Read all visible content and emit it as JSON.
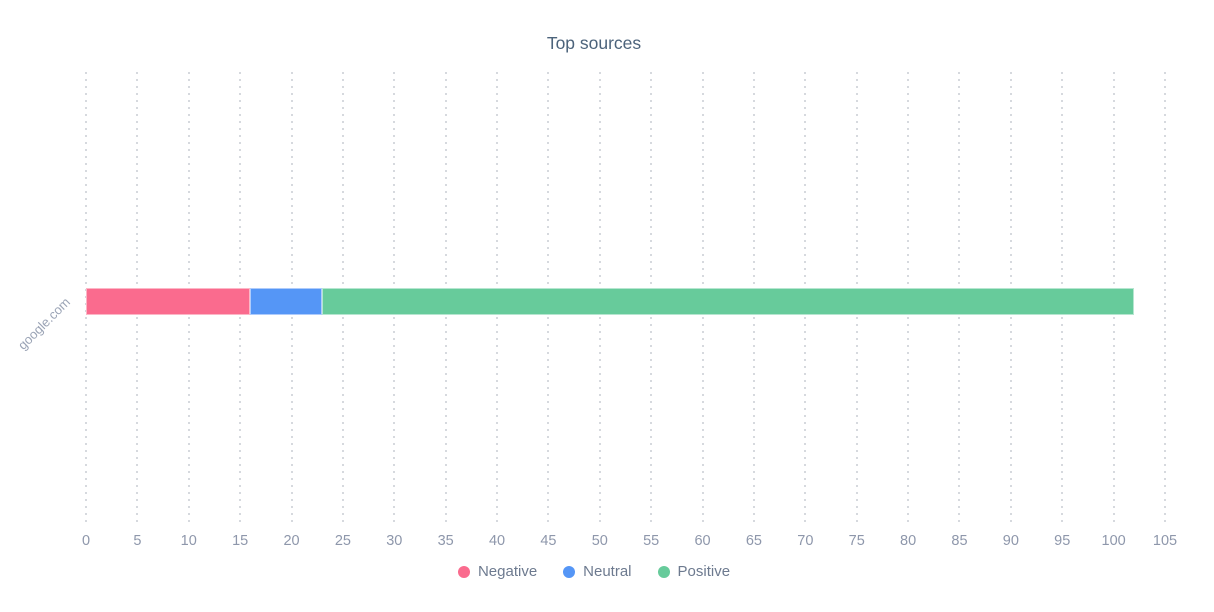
{
  "chart_data": {
    "type": "bar",
    "orientation": "horizontal",
    "stacked": true,
    "title": "Top sources",
    "categories": [
      "google.com"
    ],
    "series": [
      {
        "name": "Negative",
        "color": "#fa6b8e",
        "border_color": "#fcb6c6",
        "values": [
          16
        ]
      },
      {
        "name": "Neutral",
        "color": "#5596f6",
        "border_color": "#aecbfb",
        "values": [
          7
        ]
      },
      {
        "name": "Positive",
        "color": "#67cb9b",
        "border_color": "#b6e6d0",
        "values": [
          79
        ]
      }
    ],
    "xlim": [
      0,
      105
    ],
    "x_ticks": [
      0,
      5,
      10,
      15,
      20,
      25,
      30,
      35,
      40,
      45,
      50,
      55,
      60,
      65,
      70,
      75,
      80,
      85,
      90,
      95,
      100,
      105
    ],
    "grid": "dotted-vertical",
    "legend_position": "bottom",
    "colors": {
      "title_text": "#4c637b",
      "tick_text": "#8e97ab",
      "category_text": "#9aa3b5",
      "legend_text": "#6d7a8f",
      "gridline": "#d6d9de",
      "background": "#ffffff"
    }
  }
}
